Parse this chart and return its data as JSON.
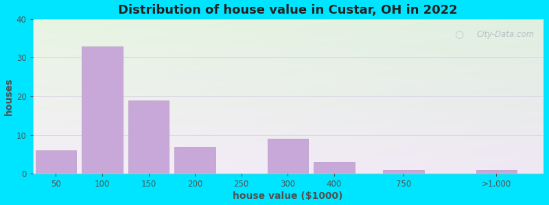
{
  "title": "Distribution of house value in Custar, OH in 2022",
  "xlabel": "house value ($1000)",
  "ylabel": "houses",
  "bar_color": "#c8a8d8",
  "bar_edge_color": "#b898c8",
  "background_outer": "#00e5ff",
  "ylim": [
    0,
    40
  ],
  "yticks": [
    0,
    10,
    20,
    30,
    40
  ],
  "xtick_labels": [
    "50",
    "100",
    "150",
    "200",
    "250",
    "300",
    "400",
    "750",
    ">1,000"
  ],
  "values": [
    6,
    33,
    19,
    7,
    0,
    9,
    3,
    1,
    1
  ],
  "watermark_text": "City-Data.com",
  "title_fontsize": 13,
  "axis_label_fontsize": 10,
  "grid_color": "#e0dce8",
  "bg_top_left": "#e8f5e2",
  "bg_bottom_right": "#f0e4ee"
}
